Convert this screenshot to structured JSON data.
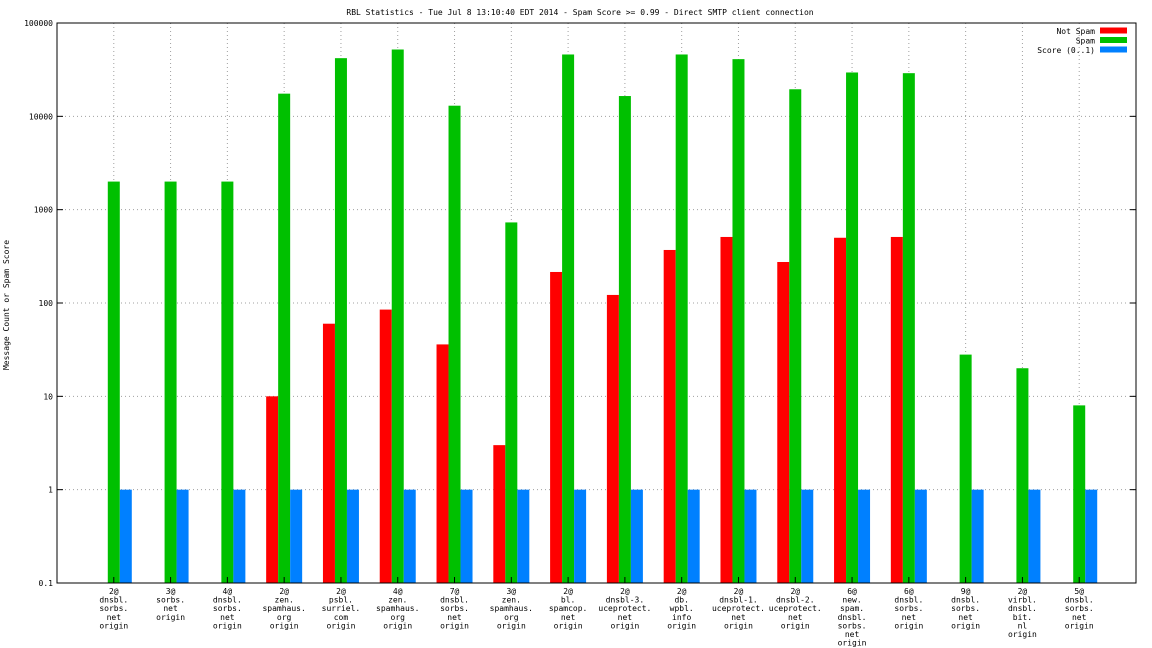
{
  "chart_data": {
    "type": "bar",
    "title": "RBL Statistics - Tue Jul  8 13:10:40 EDT 2014 - Spam Score >= 0.99 - Direct SMTP client connection",
    "xlabel": "",
    "ylabel": "Message Count or Spam Score",
    "yscale": "log",
    "ylim": [
      0.1,
      100000
    ],
    "yticks": [
      "0.1",
      "1",
      "10",
      "100",
      "1000",
      "10000",
      "100000"
    ],
    "grid": true,
    "legend_position": "top-right",
    "categories": [
      [
        "2@",
        "dnsbl.",
        "sorbs.",
        "net",
        "origin"
      ],
      [
        "3@",
        "sorbs.",
        "net",
        "origin"
      ],
      [
        "4@",
        "dnsbl.",
        "sorbs.",
        "net",
        "origin"
      ],
      [
        "2@",
        "zen.",
        "spamhaus.",
        "org",
        "origin"
      ],
      [
        "2@",
        "psbl.",
        "surriel.",
        "com",
        "origin"
      ],
      [
        "4@",
        "zen.",
        "spamhaus.",
        "org",
        "origin"
      ],
      [
        "7@",
        "dnsbl.",
        "sorbs.",
        "net",
        "origin"
      ],
      [
        "3@",
        "zen.",
        "spamhaus.",
        "org",
        "origin"
      ],
      [
        "2@",
        "bl.",
        "spamcop.",
        "net",
        "origin"
      ],
      [
        "2@",
        "dnsbl-3.",
        "uceprotect.",
        "net",
        "origin"
      ],
      [
        "2@",
        "db.",
        "wpbl.",
        "info",
        "origin"
      ],
      [
        "2@",
        "dnsbl-1.",
        "uceprotect.",
        "net",
        "origin"
      ],
      [
        "2@",
        "dnsbl-2.",
        "uceprotect.",
        "net",
        "origin"
      ],
      [
        "6@",
        "new.",
        "spam.",
        "dnsbl.",
        "sorbs.",
        "net",
        "origin"
      ],
      [
        "6@",
        "dnsbl.",
        "sorbs.",
        "net",
        "origin"
      ],
      [
        "9@",
        "dnsbl.",
        "sorbs.",
        "net",
        "origin"
      ],
      [
        "2@",
        "virbl.",
        "dnsbl.",
        "bit.",
        "nl",
        "origin"
      ],
      [
        "5@",
        "dnsbl.",
        "sorbs.",
        "net",
        "origin"
      ]
    ],
    "series": [
      {
        "name": "Not Spam",
        "color": "#ff0000",
        "values": [
          null,
          null,
          null,
          10,
          60,
          85,
          36,
          3,
          215,
          122,
          370,
          510,
          275,
          500,
          510,
          null,
          null,
          null
        ]
      },
      {
        "name": "Spam",
        "color": "#00c000",
        "values": [
          2000,
          2000,
          2000,
          17500,
          42000,
          52000,
          13000,
          730,
          46000,
          16500,
          46000,
          41000,
          19500,
          29500,
          29000,
          28,
          20,
          8
        ]
      },
      {
        "name": "Score (0..1)",
        "color": "#0080ff",
        "values": [
          1,
          1,
          1,
          1,
          1,
          1,
          1,
          1,
          1,
          1,
          1,
          1,
          1,
          1,
          1,
          1,
          1,
          1
        ]
      }
    ]
  }
}
